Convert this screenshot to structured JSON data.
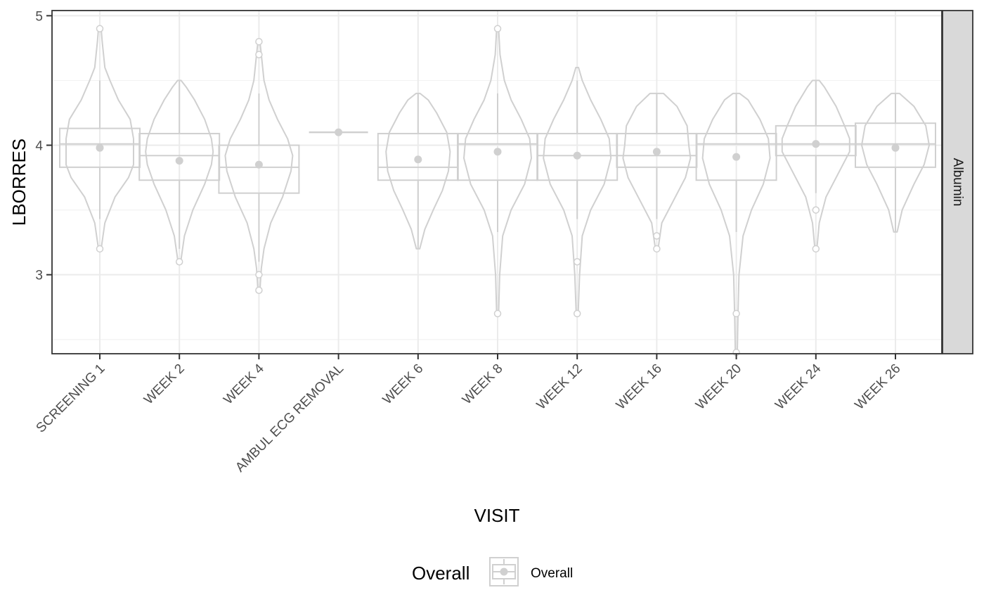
{
  "chart_data": {
    "type": "violin-box",
    "xlabel": "VISIT",
    "ylabel": "LBORRES",
    "facet_label": "Albumin",
    "y_ticks": [
      3,
      4,
      5
    ],
    "y_tick_labels": [
      "3",
      "4",
      "5"
    ],
    "ylim": [
      2.39,
      5.04
    ],
    "grid": true,
    "legend": {
      "title": "Overall",
      "label": "Overall",
      "position": "bottom"
    },
    "colors": {
      "series": "#d0d0d0",
      "grid_major": "#ebebeb",
      "grid_minor": "#f3f3f3",
      "panel_border": "#333333",
      "strip_fill": "#d9d9d9"
    },
    "categories": [
      "SCREENING 1",
      "WEEK 2",
      "WEEK 4",
      "AMBUL ECG REMOVAL",
      "WEEK 6",
      "WEEK 8",
      "WEEK 12",
      "WEEK 16",
      "WEEK 20",
      "WEEK 24",
      "WEEK 26"
    ],
    "series": [
      {
        "name": "Overall",
        "boxes": [
          {
            "q1": 3.83,
            "median": 4.01,
            "q3": 4.13,
            "whisker_low": 3.43,
            "whisker_high": 4.5,
            "mean": 3.98,
            "outliers": [
              4.9,
              3.2
            ]
          },
          {
            "q1": 3.73,
            "median": 3.92,
            "q3": 4.09,
            "whisker_low": 3.2,
            "whisker_high": 4.5,
            "mean": 3.88,
            "outliers": [
              3.1
            ]
          },
          {
            "q1": 3.63,
            "median": 3.83,
            "q3": 4.0,
            "whisker_low": 3.1,
            "whisker_high": 4.4,
            "mean": 3.85,
            "outliers": [
              4.8,
              4.7,
              3.0,
              2.88
            ]
          },
          {
            "q1": 4.1,
            "median": 4.1,
            "q3": 4.1,
            "whisker_low": 4.1,
            "whisker_high": 4.1,
            "mean": 4.1,
            "outliers": []
          },
          {
            "q1": 3.73,
            "median": 3.83,
            "q3": 4.09,
            "whisker_low": 3.2,
            "whisker_high": 4.4,
            "mean": 3.89,
            "outliers": []
          },
          {
            "q1": 3.73,
            "median": 4.01,
            "q3": 4.09,
            "whisker_low": 3.33,
            "whisker_high": 4.4,
            "mean": 3.95,
            "outliers": [
              4.9,
              2.7
            ]
          },
          {
            "q1": 3.73,
            "median": 3.92,
            "q3": 4.09,
            "whisker_low": 3.43,
            "whisker_high": 4.5,
            "mean": 3.92,
            "outliers": [
              3.1,
              2.7
            ]
          },
          {
            "q1": 3.83,
            "median": 3.92,
            "q3": 4.09,
            "whisker_low": 3.43,
            "whisker_high": 4.4,
            "mean": 3.95,
            "outliers": [
              3.3,
              3.2
            ]
          },
          {
            "q1": 3.73,
            "median": 4.01,
            "q3": 4.09,
            "whisker_low": 3.33,
            "whisker_high": 4.4,
            "mean": 3.91,
            "outliers": [
              2.7,
              2.4
            ]
          },
          {
            "q1": 3.92,
            "median": 4.01,
            "q3": 4.15,
            "whisker_low": 3.63,
            "whisker_high": 4.5,
            "mean": 4.01,
            "outliers": [
              3.5,
              3.2
            ]
          },
          {
            "q1": 3.83,
            "median": 4.01,
            "q3": 4.17,
            "whisker_low": 3.33,
            "whisker_high": 4.4,
            "mean": 3.98,
            "outliers": []
          }
        ],
        "violins": [
          {
            "ymin": 3.2,
            "ymax": 4.9,
            "profile": [
              [
                3.2,
                0.04
              ],
              [
                3.4,
                0.15
              ],
              [
                3.6,
                0.45
              ],
              [
                3.75,
                0.85
              ],
              [
                3.85,
                1.0
              ],
              [
                3.95,
                1.0
              ],
              [
                4.05,
                1.0
              ],
              [
                4.2,
                0.9
              ],
              [
                4.35,
                0.55
              ],
              [
                4.5,
                0.3
              ],
              [
                4.6,
                0.15
              ],
              [
                4.8,
                0.07
              ],
              [
                4.9,
                0.04
              ]
            ]
          },
          {
            "ymin": 3.1,
            "ymax": 4.5,
            "profile": [
              [
                3.1,
                0.04
              ],
              [
                3.3,
                0.15
              ],
              [
                3.5,
                0.4
              ],
              [
                3.7,
                0.75
              ],
              [
                3.85,
                0.95
              ],
              [
                3.95,
                1.0
              ],
              [
                4.05,
                0.95
              ],
              [
                4.2,
                0.75
              ],
              [
                4.35,
                0.45
              ],
              [
                4.45,
                0.2
              ],
              [
                4.5,
                0.05
              ]
            ]
          },
          {
            "ymin": 2.88,
            "ymax": 4.8,
            "profile": [
              [
                2.88,
                0.03
              ],
              [
                3.05,
                0.07
              ],
              [
                3.2,
                0.15
              ],
              [
                3.4,
                0.35
              ],
              [
                3.6,
                0.7
              ],
              [
                3.8,
                0.95
              ],
              [
                3.92,
                1.0
              ],
              [
                4.05,
                0.85
              ],
              [
                4.2,
                0.55
              ],
              [
                4.35,
                0.3
              ],
              [
                4.5,
                0.15
              ],
              [
                4.7,
                0.07
              ],
              [
                4.8,
                0.03
              ]
            ]
          },
          {
            "ymin": 4.1,
            "ymax": 4.1,
            "profile": []
          },
          {
            "ymin": 3.2,
            "ymax": 4.4,
            "profile": [
              [
                3.2,
                0.05
              ],
              [
                3.35,
                0.2
              ],
              [
                3.5,
                0.45
              ],
              [
                3.65,
                0.72
              ],
              [
                3.8,
                0.9
              ],
              [
                3.95,
                0.95
              ],
              [
                4.1,
                0.85
              ],
              [
                4.25,
                0.55
              ],
              [
                4.35,
                0.3
              ],
              [
                4.4,
                0.06
              ]
            ]
          },
          {
            "ymin": 2.7,
            "ymax": 4.9,
            "profile": [
              [
                2.7,
                0.03
              ],
              [
                3.0,
                0.06
              ],
              [
                3.3,
                0.15
              ],
              [
                3.5,
                0.4
              ],
              [
                3.7,
                0.8
              ],
              [
                3.9,
                1.0
              ],
              [
                4.05,
                0.95
              ],
              [
                4.2,
                0.7
              ],
              [
                4.35,
                0.4
              ],
              [
                4.5,
                0.2
              ],
              [
                4.7,
                0.07
              ],
              [
                4.9,
                0.03
              ]
            ]
          },
          {
            "ymin": 2.7,
            "ymax": 4.6,
            "profile": [
              [
                2.7,
                0.03
              ],
              [
                3.0,
                0.07
              ],
              [
                3.3,
                0.15
              ],
              [
                3.5,
                0.4
              ],
              [
                3.7,
                0.8
              ],
              [
                3.9,
                1.0
              ],
              [
                4.05,
                0.95
              ],
              [
                4.2,
                0.7
              ],
              [
                4.35,
                0.4
              ],
              [
                4.5,
                0.15
              ],
              [
                4.6,
                0.04
              ]
            ]
          },
          {
            "ymin": 3.2,
            "ymax": 4.4,
            "profile": [
              [
                3.2,
                0.04
              ],
              [
                3.4,
                0.15
              ],
              [
                3.6,
                0.55
              ],
              [
                3.75,
                0.85
              ],
              [
                3.9,
                1.0
              ],
              [
                4.0,
                0.95
              ],
              [
                4.15,
                0.9
              ],
              [
                4.3,
                0.6
              ],
              [
                4.4,
                0.2
              ]
            ]
          },
          {
            "ymin": 2.4,
            "ymax": 4.4,
            "profile": [
              [
                2.4,
                0.03
              ],
              [
                2.7,
                0.05
              ],
              [
                3.0,
                0.08
              ],
              [
                3.3,
                0.2
              ],
              [
                3.5,
                0.45
              ],
              [
                3.7,
                0.8
              ],
              [
                3.9,
                1.0
              ],
              [
                4.05,
                0.95
              ],
              [
                4.2,
                0.7
              ],
              [
                4.35,
                0.35
              ],
              [
                4.4,
                0.1
              ]
            ]
          },
          {
            "ymin": 3.2,
            "ymax": 4.5,
            "profile": [
              [
                3.2,
                0.03
              ],
              [
                3.4,
                0.1
              ],
              [
                3.6,
                0.3
              ],
              [
                3.8,
                0.7
              ],
              [
                3.95,
                1.0
              ],
              [
                4.05,
                1.0
              ],
              [
                4.15,
                0.85
              ],
              [
                4.3,
                0.6
              ],
              [
                4.45,
                0.25
              ],
              [
                4.5,
                0.1
              ]
            ]
          },
          {
            "ymin": 3.33,
            "ymax": 4.4,
            "profile": [
              [
                3.33,
                0.05
              ],
              [
                3.5,
                0.2
              ],
              [
                3.7,
                0.55
              ],
              [
                3.85,
                0.85
              ],
              [
                4.0,
                1.0
              ],
              [
                4.15,
                0.9
              ],
              [
                4.3,
                0.55
              ],
              [
                4.4,
                0.12
              ]
            ]
          }
        ]
      }
    ]
  }
}
